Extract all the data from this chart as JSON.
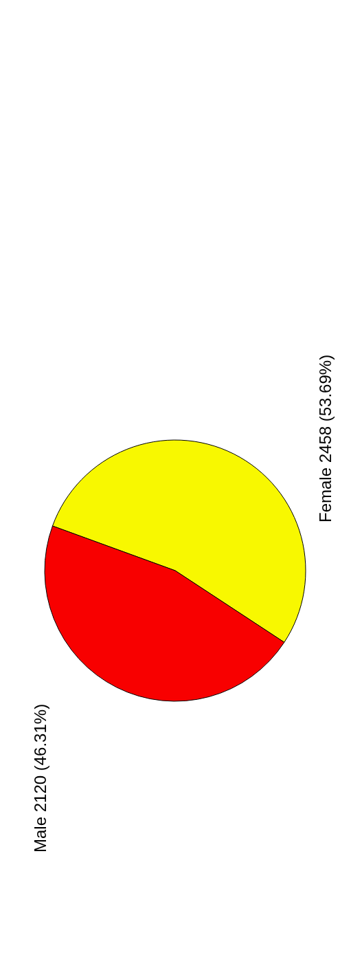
{
  "chart_data": {
    "type": "pie",
    "categories": [
      "Female",
      "Male"
    ],
    "values": [
      2458,
      2120
    ],
    "colors": [
      "#f8f800",
      "#f80000"
    ],
    "value_labels": [
      "2458 (53.69%)",
      "2120 (46.31%)"
    ]
  }
}
